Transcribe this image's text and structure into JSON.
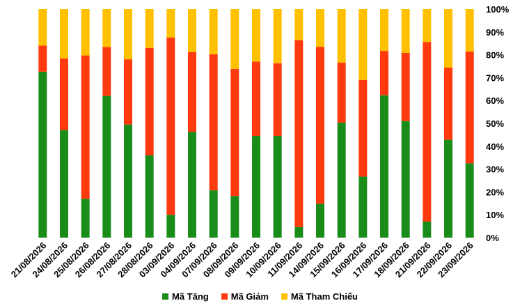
{
  "chart_data": {
    "type": "bar",
    "stacked": true,
    "categories": [
      "21/08/2026",
      "24/08/2026",
      "25/08/2026",
      "26/08/2026",
      "27/08/2026",
      "28/08/2026",
      "03/09/2026",
      "04/09/2026",
      "07/09/2026",
      "08/09/2026",
      "09/09/2026",
      "10/09/2026",
      "11/09/2026",
      "14/09/2026",
      "15/09/2026",
      "16/09/2026",
      "17/09/2026",
      "18/09/2026",
      "21/09/2026",
      "22/09/2026",
      "23/09/2026"
    ],
    "series": [
      {
        "name": "Mã Tăng",
        "color": "#1a8c1a",
        "values": [
          72.6,
          47.0,
          17.0,
          62.0,
          49.5,
          36.0,
          10.0,
          46.3,
          20.7,
          18.2,
          44.5,
          44.5,
          4.6,
          14.8,
          50.3,
          26.7,
          62.3,
          51.0,
          7.0,
          42.8,
          32.5
        ]
      },
      {
        "name": "Mã Giảm",
        "color": "#ff3a0f",
        "values": [
          11.4,
          31.4,
          62.7,
          21.4,
          28.5,
          47.0,
          77.5,
          34.9,
          59.5,
          55.6,
          32.5,
          31.8,
          81.8,
          68.7,
          26.3,
          42.3,
          19.4,
          29.8,
          78.6,
          31.6,
          48.9
        ]
      },
      {
        "name": "Mã Tham Chiếu",
        "color": "#ffc000",
        "values": [
          16.0,
          21.6,
          20.3,
          16.6,
          22.0,
          17.0,
          12.5,
          18.8,
          19.8,
          26.2,
          23.0,
          23.7,
          13.6,
          16.5,
          23.4,
          31.0,
          18.3,
          19.2,
          14.4,
          25.6,
          18.6
        ]
      }
    ],
    "yticks": [
      "0%",
      "10%",
      "20%",
      "30%",
      "40%",
      "50%",
      "60%",
      "70%",
      "80%",
      "90%",
      "100%"
    ],
    "ylim": [
      0,
      100
    ],
    "legend_position": "bottom",
    "grid": false
  }
}
